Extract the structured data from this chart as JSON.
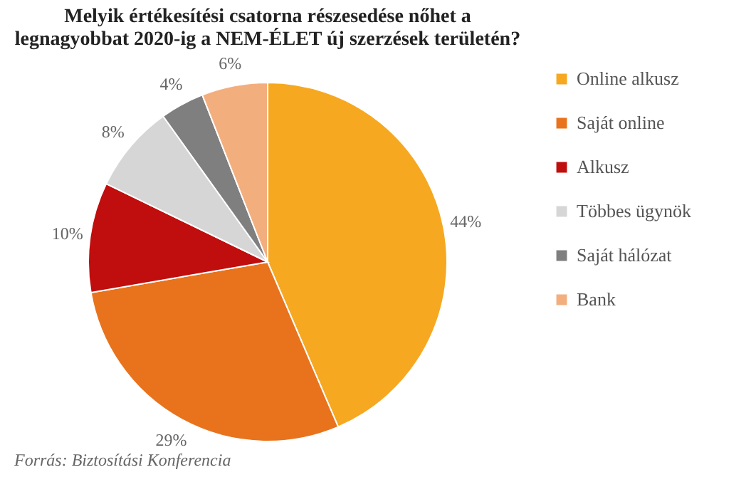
{
  "chart_data": {
    "type": "pie",
    "title": "Melyik értékesítési csatorna részesedése nőhet a legnagyobbat 2020-ig a NEM-ÉLET új szerzések területén?",
    "categories": [
      "Online alkusz",
      "Saját online",
      "Alkusz",
      "Többes ügynök",
      "Saját hálózat",
      "Bank"
    ],
    "values": [
      44,
      29,
      10,
      8,
      4,
      6
    ],
    "value_labels": [
      "44%",
      "29%",
      "10%",
      "8%",
      "4%",
      "6%"
    ],
    "colors": [
      "#f6a821",
      "#e8731c",
      "#c00d0d",
      "#d6d6d6",
      "#7f7f7f",
      "#f3ae7e"
    ],
    "legend": "right",
    "annotations": [
      "Forrás: Biztosítási Konferencia"
    ]
  }
}
